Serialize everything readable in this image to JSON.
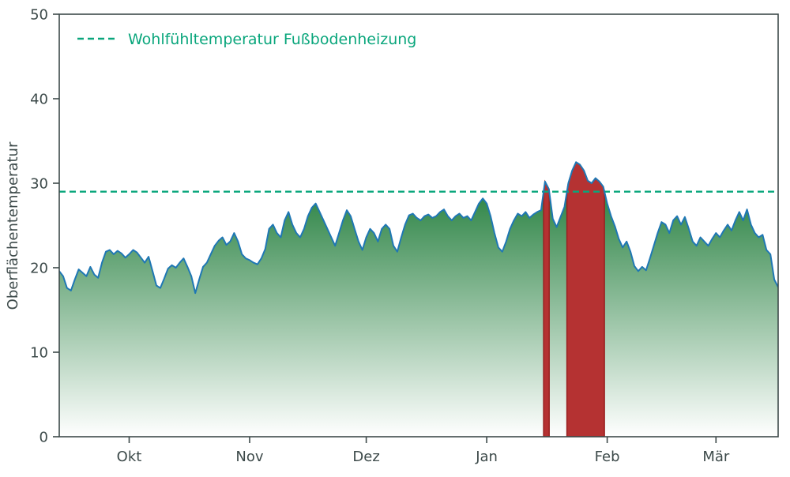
{
  "figure": {
    "background_color": "#ffffff"
  },
  "style": {
    "axis_color": "#3d4a4a",
    "tick_label_color": "#3d4a4a"
  },
  "chart_data": {
    "type": "area",
    "title": "",
    "xlabel": "",
    "ylabel": "Oberflächentemperatur",
    "ylim": [
      0,
      50
    ],
    "yticks": [
      0,
      10,
      20,
      30,
      40,
      50
    ],
    "x_unit": "day_index",
    "x_range": [
      0,
      185
    ],
    "xticks": [
      {
        "day": 18,
        "label": "Okt"
      },
      {
        "day": 49,
        "label": "Nov"
      },
      {
        "day": 79,
        "label": "Dez"
      },
      {
        "day": 110,
        "label": "Jan"
      },
      {
        "day": 141,
        "label": "Feb"
      },
      {
        "day": 169,
        "label": "Mär"
      }
    ],
    "grid": false,
    "legend": {
      "position": "upper-left",
      "entries": [
        {
          "label": "Wohlfühltemperatur Fußbodenheizung",
          "color": "#0aa67c",
          "style": "dashed"
        }
      ]
    },
    "threshold": {
      "value": 29,
      "label": "Wohlfühltemperatur Fußbodenheizung",
      "color": "#0aa67c",
      "line_style": "dashed"
    },
    "area_fill": {
      "top_color": "#26803f",
      "bottom_color": "#ffffff"
    },
    "exceedance": {
      "fill_color": "#b53232",
      "edge_color": "#992121"
    },
    "series": [
      {
        "name": "Oberflächentemperatur",
        "line_color": "#1f77b4",
        "values": [
          19.6,
          19.0,
          17.6,
          17.3,
          18.6,
          19.8,
          19.4,
          19.0,
          20.1,
          19.2,
          18.8,
          20.6,
          21.9,
          22.1,
          21.6,
          22.0,
          21.7,
          21.2,
          21.6,
          22.1,
          21.8,
          21.2,
          20.6,
          21.3,
          19.6,
          17.9,
          17.6,
          18.7,
          19.9,
          20.3,
          20.0,
          20.6,
          21.1,
          20.1,
          19.0,
          17.0,
          18.6,
          20.1,
          20.6,
          21.6,
          22.6,
          23.2,
          23.6,
          22.7,
          23.1,
          24.1,
          23.1,
          21.6,
          21.1,
          20.9,
          20.6,
          20.4,
          21.1,
          22.2,
          24.6,
          25.1,
          24.1,
          23.6,
          25.6,
          26.6,
          25.1,
          24.1,
          23.6,
          24.6,
          26.1,
          27.1,
          27.6,
          26.6,
          25.6,
          24.6,
          23.6,
          22.6,
          24.1,
          25.6,
          26.8,
          26.1,
          24.6,
          23.1,
          22.1,
          23.6,
          24.6,
          24.1,
          23.1,
          24.6,
          25.1,
          24.6,
          22.6,
          21.9,
          23.6,
          25.1,
          26.2,
          26.4,
          25.9,
          25.6,
          26.1,
          26.3,
          25.9,
          26.1,
          26.6,
          26.9,
          26.1,
          25.6,
          26.1,
          26.4,
          25.9,
          26.1,
          25.6,
          26.6,
          27.6,
          28.2,
          27.6,
          26.1,
          24.1,
          22.4,
          21.9,
          23.1,
          24.6,
          25.6,
          26.4,
          26.1,
          26.6,
          25.9,
          26.3,
          26.6,
          26.8,
          30.2,
          29.3,
          25.8,
          24.8,
          26.0,
          27.2,
          30.0,
          31.5,
          32.5,
          32.2,
          31.5,
          30.3,
          30.0,
          30.6,
          30.2,
          29.6,
          27.6,
          26.1,
          24.9,
          23.4,
          22.4,
          23.1,
          21.9,
          20.2,
          19.6,
          20.1,
          19.7,
          21.1,
          22.6,
          24.1,
          25.4,
          25.1,
          24.1,
          25.6,
          26.1,
          25.1,
          26.0,
          24.6,
          23.1,
          22.6,
          23.6,
          23.1,
          22.6,
          23.4,
          24.1,
          23.6,
          24.4,
          25.1,
          24.4,
          25.6,
          26.6,
          25.6,
          26.9,
          25.1,
          24.1,
          23.6,
          23.9,
          22.1,
          21.6,
          18.6,
          17.7
        ]
      }
    ]
  }
}
